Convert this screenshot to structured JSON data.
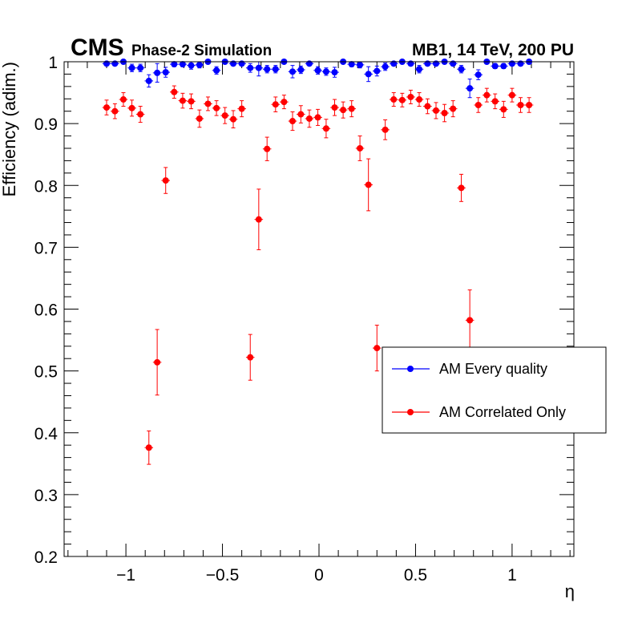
{
  "chart_data": {
    "type": "scatter",
    "title": "",
    "header": {
      "experiment": "CMS",
      "subtitle": "Phase-2 Simulation",
      "right_label": "MB1, 14 TeV, 200 PU"
    },
    "xlabel": "η",
    "ylabel": "Efficiency (adim.)",
    "xlim": [
      -1.32,
      1.32
    ],
    "ylim": [
      0.2,
      1.0
    ],
    "xticks": [
      {
        "value": -1,
        "label": "−1"
      },
      {
        "value": -0.5,
        "label": "−0.5"
      },
      {
        "value": 0,
        "label": "0"
      },
      {
        "value": 0.5,
        "label": "0.5"
      },
      {
        "value": 1,
        "label": "1"
      }
    ],
    "yticks": [
      {
        "value": 0.2,
        "label": "0.2"
      },
      {
        "value": 0.3,
        "label": "0.3"
      },
      {
        "value": 0.4,
        "label": "0.4"
      },
      {
        "value": 0.5,
        "label": "0.5"
      },
      {
        "value": 0.6,
        "label": "0.6"
      },
      {
        "value": 0.7,
        "label": "0.7"
      },
      {
        "value": 0.8,
        "label": "0.8"
      },
      {
        "value": 0.9,
        "label": "0.9"
      },
      {
        "value": 1.0,
        "label": "1"
      }
    ],
    "bin_half_width": 0.022,
    "legend_position": "right",
    "series": [
      {
        "name": "AM Every quality",
        "color": "#0000ff",
        "x": [
          -1.1,
          -1.057,
          -1.013,
          -0.969,
          -0.925,
          -0.881,
          -0.838,
          -0.794,
          -0.75,
          -0.706,
          -0.662,
          -0.619,
          -0.575,
          -0.531,
          -0.487,
          -0.444,
          -0.4,
          -0.356,
          -0.312,
          -0.269,
          -0.225,
          -0.181,
          -0.137,
          -0.094,
          -0.05,
          -0.006,
          0.037,
          0.081,
          0.125,
          0.169,
          0.212,
          0.256,
          0.3,
          0.343,
          0.387,
          0.431,
          0.475,
          0.519,
          0.562,
          0.606,
          0.65,
          0.694,
          0.737,
          0.781,
          0.825,
          0.869,
          0.912,
          0.956,
          1.0,
          1.044,
          1.088
        ],
        "y": [
          0.997,
          0.997,
          1.0,
          0.99,
          0.99,
          0.969,
          0.982,
          0.983,
          0.996,
          0.996,
          0.994,
          0.995,
          1.0,
          0.986,
          1.0,
          0.997,
          0.997,
          0.99,
          0.99,
          0.988,
          0.988,
          1.0,
          0.984,
          0.987,
          0.997,
          0.986,
          0.984,
          0.983,
          1.0,
          0.996,
          0.995,
          0.98,
          0.985,
          0.992,
          0.997,
          1.0,
          0.997,
          0.988,
          0.997,
          0.997,
          1.0,
          0.997,
          0.988,
          0.957,
          0.979,
          1.0,
          0.993,
          0.993,
          0.997,
          0.997,
          1.0
        ],
        "err": [
          0.003,
          0.003,
          0.001,
          0.006,
          0.006,
          0.01,
          0.015,
          0.008,
          0.004,
          0.004,
          0.006,
          0.005,
          0.002,
          0.006,
          0.002,
          0.003,
          0.003,
          0.007,
          0.013,
          0.006,
          0.006,
          0.002,
          0.01,
          0.006,
          0.003,
          0.006,
          0.006,
          0.008,
          0.002,
          0.004,
          0.005,
          0.012,
          0.008,
          0.006,
          0.003,
          0.002,
          0.003,
          0.006,
          0.003,
          0.003,
          0.002,
          0.003,
          0.006,
          0.015,
          0.008,
          0.002,
          0.004,
          0.004,
          0.003,
          0.003,
          0.002
        ]
      },
      {
        "name": "AM Correlated Only",
        "color": "#ff0000",
        "x": [
          -1.1,
          -1.057,
          -1.013,
          -0.969,
          -0.925,
          -0.881,
          -0.838,
          -0.794,
          -0.75,
          -0.706,
          -0.662,
          -0.619,
          -0.575,
          -0.531,
          -0.487,
          -0.444,
          -0.4,
          -0.356,
          -0.312,
          -0.269,
          -0.225,
          -0.181,
          -0.137,
          -0.094,
          -0.05,
          -0.006,
          0.037,
          0.081,
          0.125,
          0.169,
          0.212,
          0.256,
          0.3,
          0.343,
          0.387,
          0.431,
          0.475,
          0.519,
          0.562,
          0.606,
          0.65,
          0.694,
          0.737,
          0.781,
          0.825,
          0.869,
          0.912,
          0.956,
          1.0,
          1.044,
          1.088
        ],
        "y": [
          0.926,
          0.92,
          0.939,
          0.925,
          0.915,
          0.376,
          0.514,
          0.808,
          0.951,
          0.937,
          0.936,
          0.908,
          0.932,
          0.925,
          0.913,
          0.907,
          0.924,
          0.522,
          0.745,
          0.859,
          0.931,
          0.935,
          0.904,
          0.915,
          0.908,
          0.91,
          0.892,
          0.926,
          0.922,
          0.924,
          0.86,
          0.801,
          0.537,
          0.89,
          0.939,
          0.938,
          0.943,
          0.939,
          0.928,
          0.921,
          0.917,
          0.924,
          0.796,
          0.582,
          0.93,
          0.946,
          0.936,
          0.923,
          0.946,
          0.93,
          0.93
        ],
        "err": [
          0.012,
          0.012,
          0.011,
          0.013,
          0.013,
          0.027,
          0.053,
          0.021,
          0.01,
          0.012,
          0.012,
          0.014,
          0.011,
          0.012,
          0.013,
          0.014,
          0.013,
          0.037,
          0.049,
          0.019,
          0.012,
          0.011,
          0.015,
          0.014,
          0.014,
          0.013,
          0.015,
          0.013,
          0.013,
          0.013,
          0.02,
          0.042,
          0.037,
          0.016,
          0.011,
          0.011,
          0.011,
          0.011,
          0.012,
          0.013,
          0.014,
          0.013,
          0.022,
          0.049,
          0.012,
          0.011,
          0.012,
          0.013,
          0.011,
          0.012,
          0.012
        ]
      }
    ]
  }
}
